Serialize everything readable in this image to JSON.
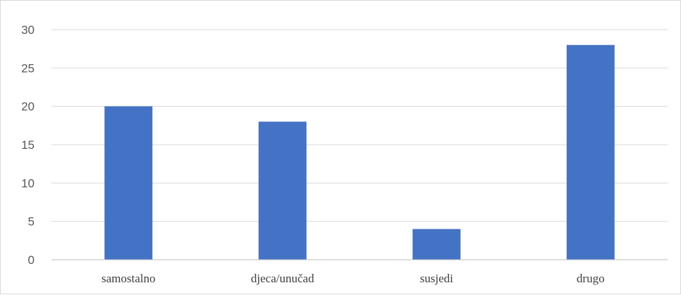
{
  "chart_data": {
    "type": "bar",
    "categories": [
      "samostalno",
      "djeca/unučad",
      "susjedi",
      "drugo"
    ],
    "values": [
      20,
      18,
      4,
      28
    ],
    "title": "",
    "xlabel": "",
    "ylabel": "",
    "ylim": [
      0,
      30
    ],
    "yticks": [
      0,
      5,
      10,
      15,
      20,
      25,
      30
    ],
    "grid": true,
    "legend": "none",
    "bar_color": "#4472c4",
    "grid_color": "#d9d9d9"
  }
}
